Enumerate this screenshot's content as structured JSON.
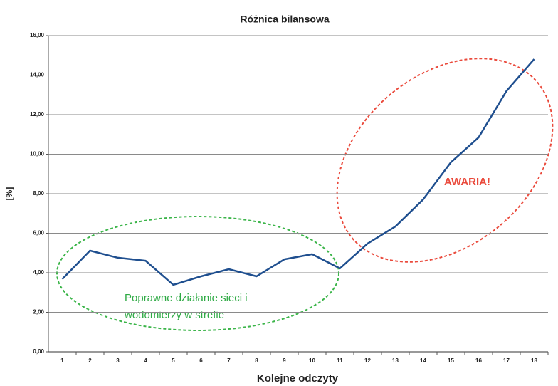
{
  "chart_data": {
    "type": "line",
    "title": "Różnica bilansowa",
    "xlabel": "Kolejne odczyty",
    "ylabel": "[%]",
    "categories": [
      "1",
      "2",
      "3",
      "4",
      "5",
      "6",
      "7",
      "8",
      "9",
      "10",
      "11",
      "12",
      "13",
      "14",
      "15",
      "16",
      "17",
      "18"
    ],
    "series": [
      {
        "name": "Różnica bilansowa",
        "color": "#1f4f8f",
        "values": [
          3.68,
          5.12,
          4.76,
          4.61,
          3.39,
          3.82,
          4.18,
          3.82,
          4.68,
          4.94,
          4.22,
          5.48,
          6.34,
          7.71,
          9.59,
          10.85,
          13.19,
          14.81
        ]
      }
    ],
    "ylim": [
      0,
      16
    ],
    "yticks": [
      {
        "value": 0,
        "label": "0,00"
      },
      {
        "value": 2,
        "label": "2,00"
      },
      {
        "value": 4,
        "label": "4,00"
      },
      {
        "value": 6,
        "label": "6,00"
      },
      {
        "value": 8,
        "label": "8,00"
      },
      {
        "value": 10,
        "label": "10,00"
      },
      {
        "value": 12,
        "label": "12,00"
      },
      {
        "value": 14,
        "label": "14,00"
      },
      {
        "value": 16,
        "label": "16,00"
      }
    ],
    "grid": true,
    "annotations": [
      "AWARIA!",
      "Poprawne działanie sieci i",
      "wodomierzy w strefie"
    ]
  }
}
